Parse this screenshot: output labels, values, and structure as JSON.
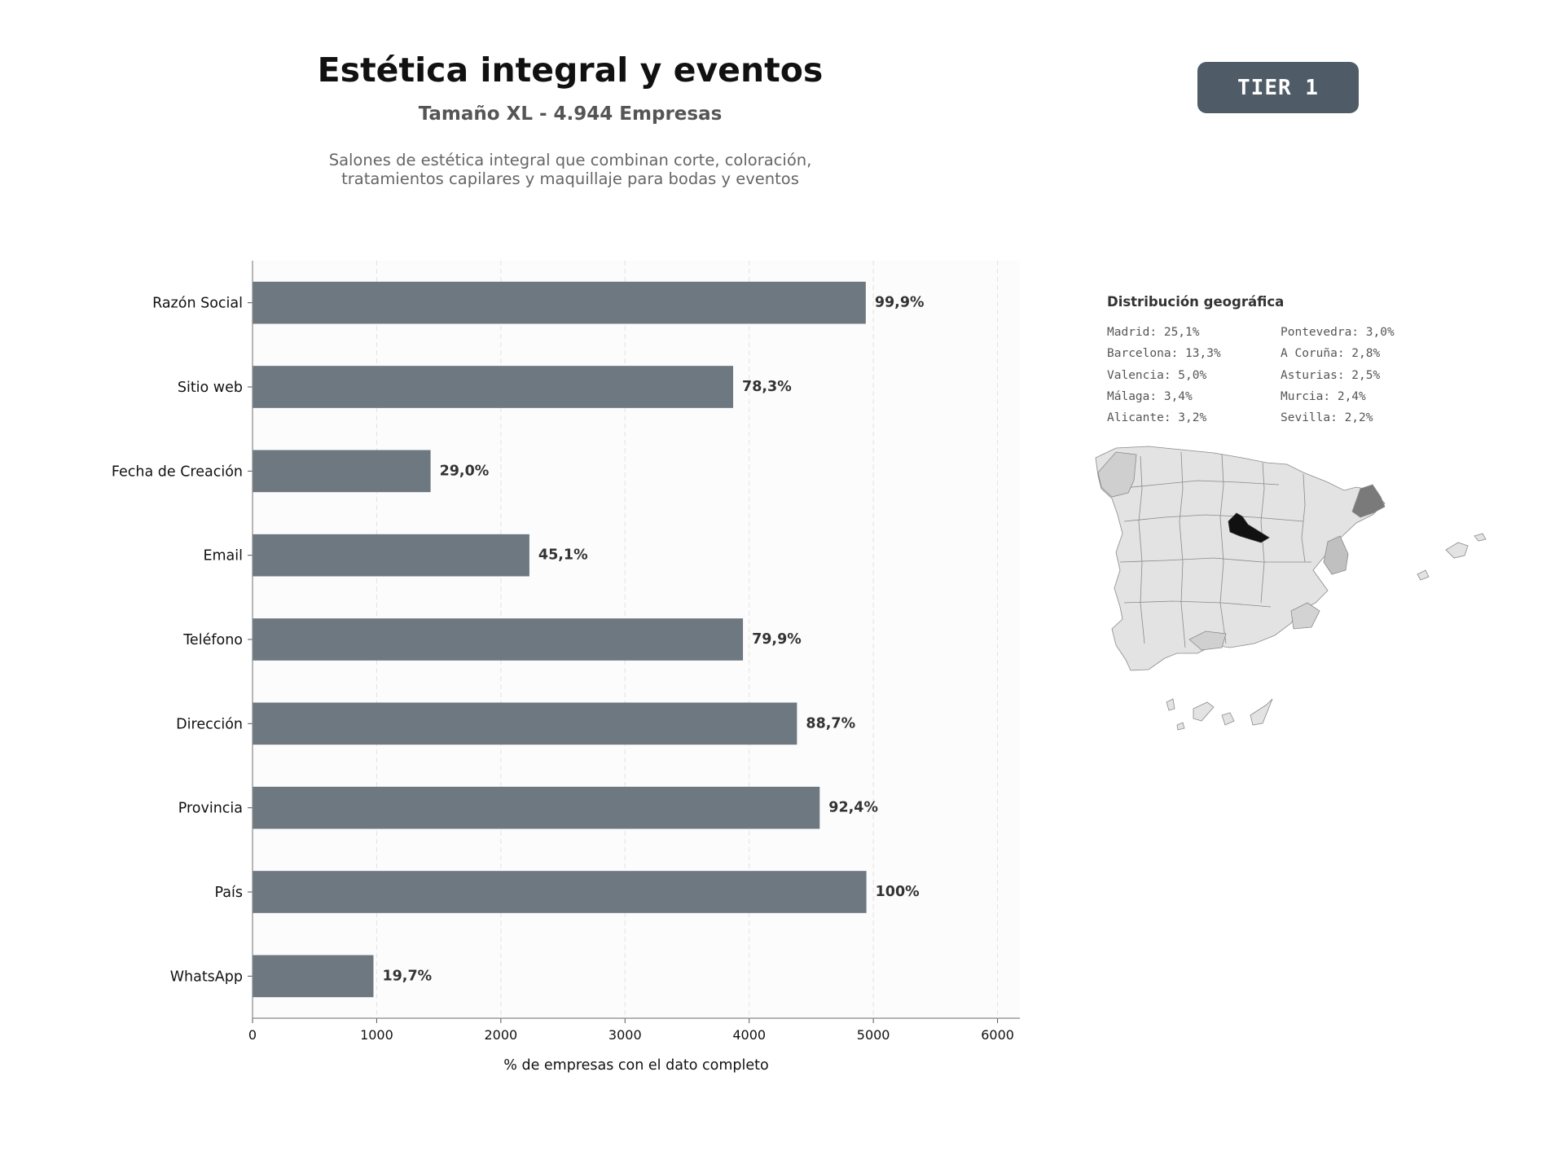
{
  "header": {
    "title": "Estética integral y eventos",
    "subtitle": "Tamaño XL - 4.944 Empresas",
    "description_lines": [
      "Salones de estética integral que combinan corte, coloración,",
      "tratamientos capilares y maquillaje para bodas y eventos"
    ],
    "tier_label": "TIER 1"
  },
  "chart_data": {
    "type": "bar",
    "orientation": "horizontal",
    "categories": [
      "Razón Social",
      "Sitio web",
      "Fecha de Creación",
      "Email",
      "Teléfono",
      "Dirección",
      "Provincia",
      "País",
      "WhatsApp"
    ],
    "values": [
      4939,
      3871,
      1434,
      2230,
      3950,
      4385,
      4568,
      4944,
      974
    ],
    "data_labels": [
      "99,9%",
      "78,3%",
      "29,0%",
      "45,1%",
      "79,9%",
      "88,7%",
      "92,4%",
      "100%",
      "19,7%"
    ],
    "xlabel": "% de empresas con el dato completo",
    "ylabel": "",
    "xlim": [
      0,
      6180
    ],
    "xticks": [
      0,
      1000,
      2000,
      3000,
      4000,
      5000,
      6000
    ],
    "grid": "vertical dashed",
    "bar_color": "#6e7881"
  },
  "geo": {
    "title": "Distribución geográfica",
    "col1": [
      "Madrid: 25,1%",
      "Barcelona: 13,3%",
      "Valencia: 5,0%",
      "Málaga: 3,4%",
      "Alicante: 3,2%"
    ],
    "col2": [
      "Pontevedra: 3,0%",
      "A Coruña: 2,8%",
      "Asturias: 2,5%",
      "Murcia: 2,4%",
      "Sevilla: 2,2%"
    ]
  }
}
